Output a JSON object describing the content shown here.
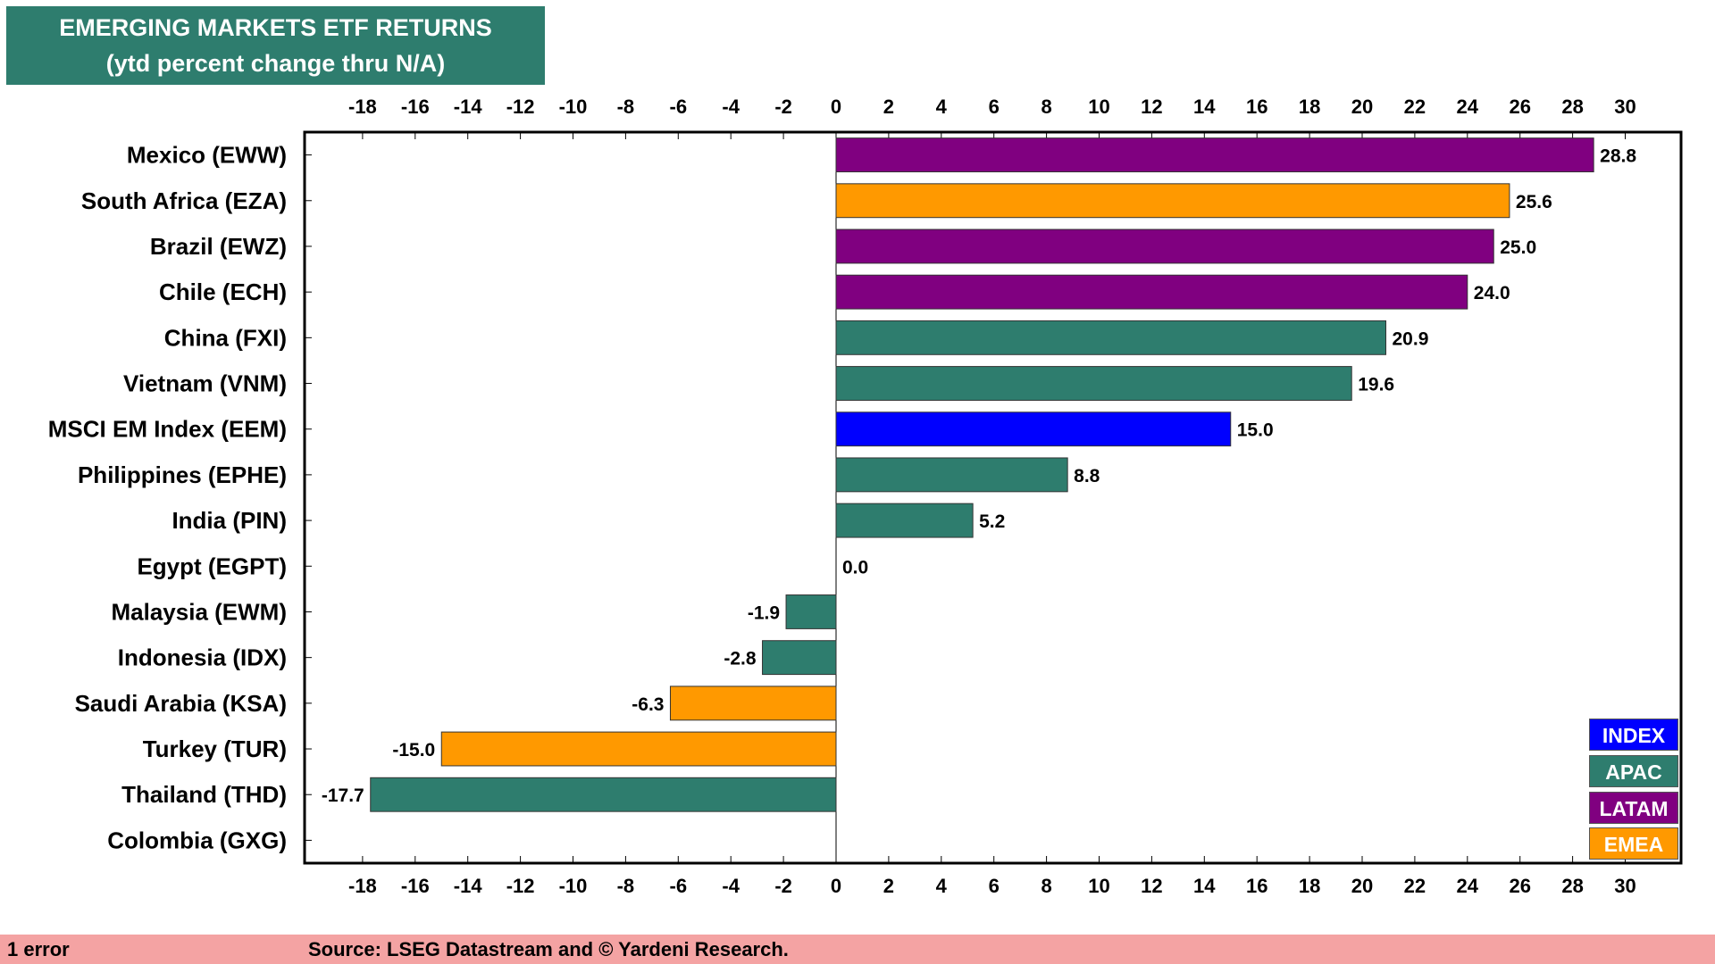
{
  "title": "EMERGING MARKETS ETF RETURNS",
  "subtitle": "(ytd percent change thru N/A)",
  "footer": {
    "status": "1 error",
    "source": "Source: LSEG Datastream and © Yardeni Research."
  },
  "colors": {
    "INDEX": "#0000ff",
    "APAC": "#2e7d6e",
    "LATAM": "#800080",
    "EMEA": "#ff9900",
    "title_bg": "#2e7d6e",
    "footer_bg": "#f4a3a3"
  },
  "legend": [
    {
      "label": "INDEX",
      "group": "INDEX"
    },
    {
      "label": "APAC",
      "group": "APAC"
    },
    {
      "label": "LATAM",
      "group": "LATAM"
    },
    {
      "label": "EMEA",
      "group": "EMEA"
    }
  ],
  "chart_data": {
    "type": "bar",
    "orientation": "horizontal",
    "title": "EMERGING MARKETS ETF RETURNS",
    "subtitle": "(ytd percent change thru N/A)",
    "xlim": [
      -20,
      32
    ],
    "x_ticks": [
      -18,
      -16,
      -14,
      -12,
      -10,
      -8,
      -6,
      -4,
      -2,
      0,
      2,
      4,
      6,
      8,
      10,
      12,
      14,
      16,
      18,
      20,
      22,
      24,
      26,
      28,
      30
    ],
    "tick_positions": [
      "top",
      "bottom"
    ],
    "legend_position": "bottom-right",
    "categories": [
      "Mexico (EWW)",
      "South Africa (EZA)",
      "Brazil (EWZ)",
      "Chile (ECH)",
      "China (FXI)",
      "Vietnam (VNM)",
      "MSCI EM Index (EEM)",
      "Philippines (EPHE)",
      "India (PIN)",
      "Egypt (EGPT)",
      "Malaysia (EWM)",
      "Indonesia (IDX)",
      "Saudi Arabia (KSA)",
      "Turkey (TUR)",
      "Thailand (THD)",
      "Colombia (GXG)"
    ],
    "values": [
      28.8,
      25.6,
      25.0,
      24.0,
      20.9,
      19.6,
      15.0,
      8.8,
      5.2,
      0.0,
      -1.9,
      -2.8,
      -6.3,
      -15.0,
      -17.7,
      null
    ],
    "value_labels": [
      "28.8",
      "25.6",
      "25.0",
      "24.0",
      "20.9",
      "19.6",
      "15.0",
      "8.8",
      "5.2",
      "0.0",
      "-1.9",
      "-2.8",
      "-6.3",
      "-15.0",
      "-17.7",
      ""
    ],
    "groups": [
      "LATAM",
      "EMEA",
      "LATAM",
      "LATAM",
      "APAC",
      "APAC",
      "INDEX",
      "APAC",
      "APAC",
      "EMEA",
      "APAC",
      "APAC",
      "EMEA",
      "EMEA",
      "APAC",
      "LATAM"
    ]
  }
}
